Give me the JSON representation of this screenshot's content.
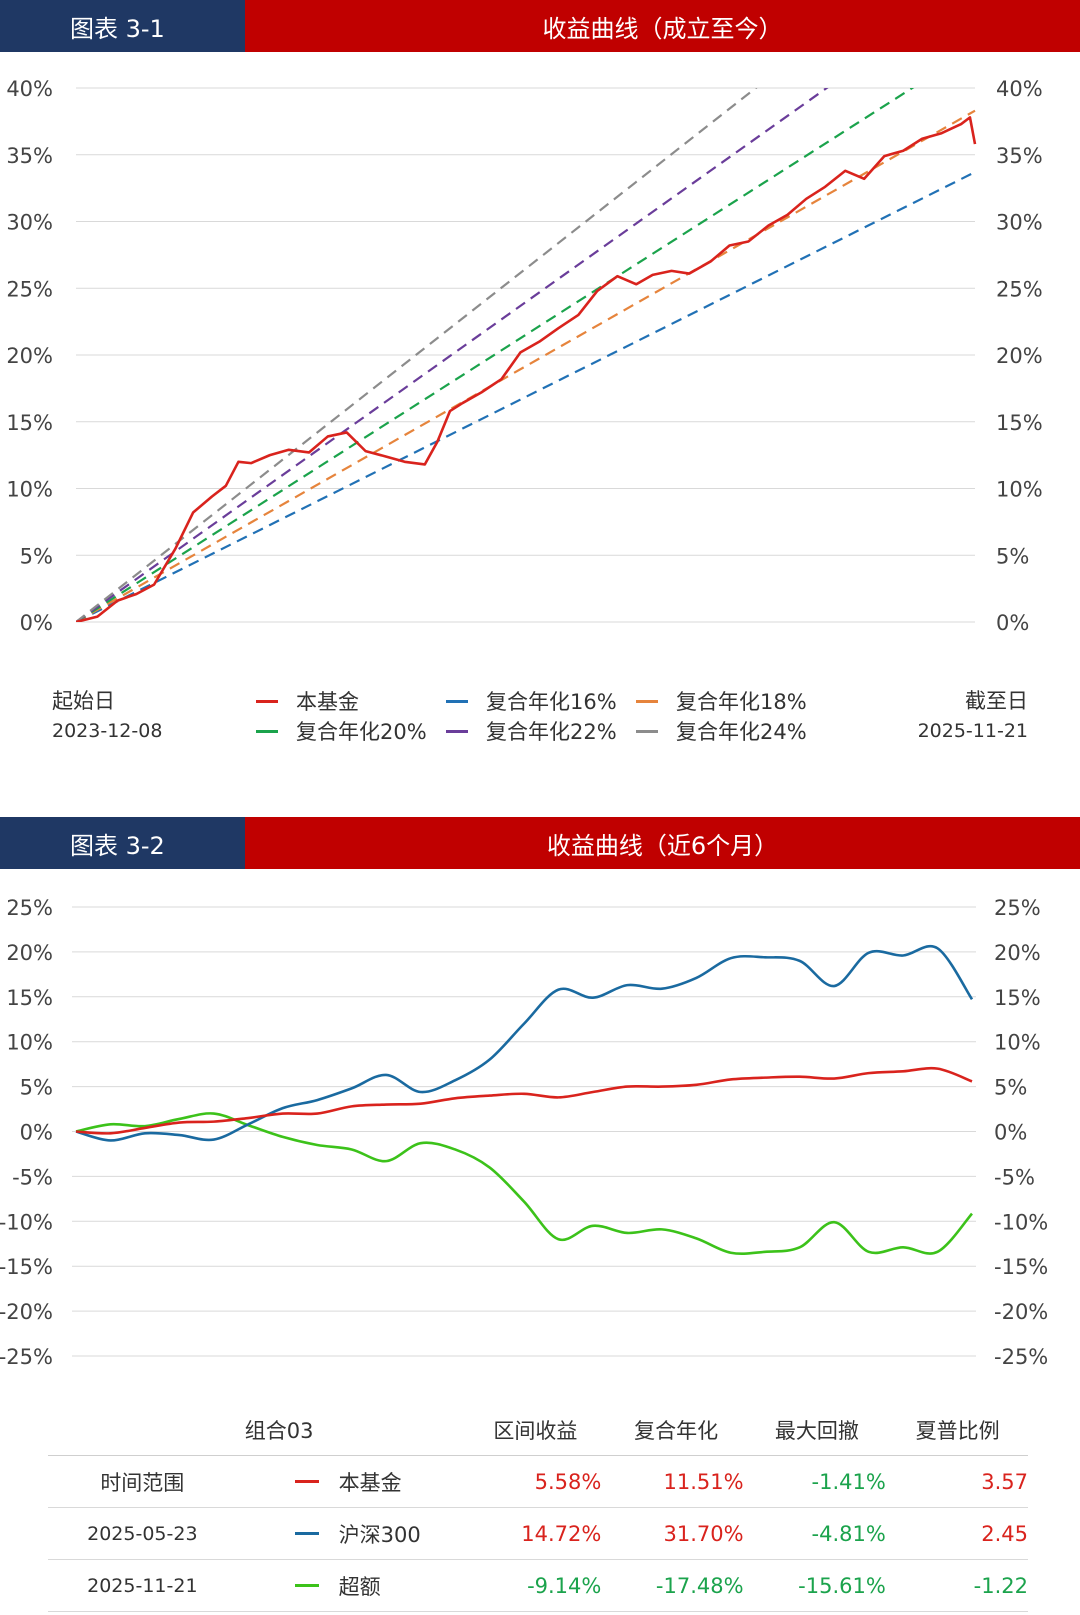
{
  "colors": {
    "header_left_bg": "#1f3864",
    "header_right_bg": "#c00000",
    "fund": "#d9231d",
    "cagr16": "#2171b5",
    "cagr18": "#e6843c",
    "cagr20": "#1ba34c",
    "cagr22": "#6a3d9a",
    "cagr24": "#8c8c8c",
    "hs300": "#1a6aa0",
    "excess": "#3cc21a",
    "positive_text": "#d9231d",
    "negative_text": "#1ba34c"
  },
  "figure1": {
    "tag": "图表 3-1",
    "title": "收益曲线（成立至今）",
    "start_label": "起始日",
    "start_date": "2023-12-08",
    "end_label": "截至日",
    "end_date": "2025-11-21"
  },
  "figure2": {
    "tag": "图表 3-2",
    "title": "收益曲线（近6个月）"
  },
  "chart_data": [
    {
      "type": "line",
      "title": "收益曲线（成立至今）",
      "x_range": [
        "2023-12-08",
        "2025-11-21"
      ],
      "ylim": [
        0,
        40
      ],
      "y_ticks": [
        "0%",
        "5%",
        "10%",
        "15%",
        "20%",
        "25%",
        "30%",
        "35%",
        "40%"
      ],
      "grid": true,
      "legend": "bottom",
      "series": [
        {
          "name": "本基金",
          "color_key": "fund",
          "style": "solid",
          "x": [
            "2023-12-08",
            "2023-12-25",
            "2024-01-10",
            "2024-01-25",
            "2024-02-08",
            "2024-02-25",
            "2024-03-10",
            "2024-03-25",
            "2024-04-05",
            "2024-04-15",
            "2024-04-25",
            "2024-05-10",
            "2024-05-25",
            "2024-06-10",
            "2024-06-25",
            "2024-07-10",
            "2024-07-25",
            "2024-08-10",
            "2024-08-25",
            "2024-09-10",
            "2024-09-20",
            "2024-09-30",
            "2024-10-10",
            "2024-10-25",
            "2024-11-10",
            "2024-11-25",
            "2024-12-10",
            "2024-12-25",
            "2025-01-10",
            "2025-01-25",
            "2025-02-10",
            "2025-02-25",
            "2025-03-10",
            "2025-03-25",
            "2025-04-08",
            "2025-04-25",
            "2025-05-10",
            "2025-05-25",
            "2025-06-10",
            "2025-06-25",
            "2025-07-10",
            "2025-07-25",
            "2025-08-10",
            "2025-08-25",
            "2025-09-10",
            "2025-09-25",
            "2025-10-10",
            "2025-10-25",
            "2025-11-10",
            "2025-11-17",
            "2025-11-21"
          ],
          "y": [
            0,
            0.4,
            1.6,
            2.1,
            2.8,
            5.5,
            8.2,
            9.4,
            10.2,
            12.0,
            11.9,
            12.5,
            12.9,
            12.7,
            13.9,
            14.2,
            12.8,
            12.4,
            12.0,
            11.8,
            13.5,
            15.8,
            16.4,
            17.2,
            18.2,
            20.2,
            21.0,
            22.0,
            23.0,
            24.8,
            25.9,
            25.3,
            26.0,
            26.3,
            26.1,
            27.0,
            28.2,
            28.5,
            29.7,
            30.5,
            31.7,
            32.6,
            33.8,
            33.2,
            34.9,
            35.3,
            36.2,
            36.6,
            37.3,
            37.8,
            35.8
          ]
        },
        {
          "name": "复合年化16%",
          "color_key": "cagr16",
          "style": "dashed",
          "x": [
            "2023-12-08",
            "2025-11-21"
          ],
          "y": [
            0,
            33.7
          ]
        },
        {
          "name": "复合年化18%",
          "color_key": "cagr18",
          "style": "dashed",
          "x": [
            "2023-12-08",
            "2025-11-21"
          ],
          "y": [
            0,
            38.3
          ]
        },
        {
          "name": "复合年化20%",
          "color_key": "cagr20",
          "style": "dashed",
          "x": [
            "2023-12-08",
            "2025-11-21"
          ],
          "y": [
            0,
            43.0
          ]
        },
        {
          "name": "复合年化22%",
          "color_key": "cagr22",
          "style": "dashed",
          "x": [
            "2023-12-08",
            "2025-11-21"
          ],
          "y": [
            0,
            47.9
          ]
        },
        {
          "name": "复合年化24%",
          "color_key": "cagr24",
          "style": "dashed",
          "x": [
            "2023-12-08",
            "2025-11-21"
          ],
          "y": [
            0,
            52.9
          ]
        }
      ]
    },
    {
      "type": "line",
      "title": "收益曲线（近6个月）",
      "x_range": [
        "2025-05-23",
        "2025-11-21"
      ],
      "ylim": [
        -25,
        25
      ],
      "y_ticks": [
        "-25%",
        "-20%",
        "-15%",
        "-10%",
        "-5%",
        "0%",
        "5%",
        "10%",
        "15%",
        "20%",
        "25%"
      ],
      "grid": true,
      "legend": "table",
      "x": [
        "2025-05-23",
        "2025-05-30",
        "2025-06-06",
        "2025-06-13",
        "2025-06-20",
        "2025-06-27",
        "2025-07-04",
        "2025-07-11",
        "2025-07-18",
        "2025-07-25",
        "2025-08-01",
        "2025-08-08",
        "2025-08-15",
        "2025-08-22",
        "2025-08-29",
        "2025-09-05",
        "2025-09-12",
        "2025-09-19",
        "2025-09-26",
        "2025-10-03",
        "2025-10-10",
        "2025-10-17",
        "2025-10-24",
        "2025-10-31",
        "2025-11-07",
        "2025-11-14",
        "2025-11-21"
      ],
      "series": [
        {
          "name": "本基金",
          "color_key": "fund",
          "y": [
            0,
            -0.2,
            0.4,
            1.0,
            1.1,
            1.5,
            2.0,
            2.0,
            2.8,
            3.0,
            3.1,
            3.7,
            4.0,
            4.2,
            3.8,
            4.4,
            5.0,
            5.0,
            5.2,
            5.8,
            6.0,
            6.1,
            5.9,
            6.5,
            6.7,
            7.0,
            5.58
          ]
        },
        {
          "name": "沪深300",
          "color_key": "hs300",
          "y": [
            0,
            -1.0,
            -0.2,
            -0.4,
            -0.9,
            0.8,
            2.6,
            3.5,
            4.8,
            6.3,
            4.4,
            5.7,
            8.0,
            12.0,
            15.8,
            14.9,
            16.3,
            15.9,
            17.1,
            19.3,
            19.4,
            19.0,
            16.2,
            19.9,
            19.6,
            20.4,
            14.72
          ]
        },
        {
          "name": "超额",
          "color_key": "excess",
          "y": [
            0,
            0.8,
            0.6,
            1.4,
            2.0,
            0.7,
            -0.6,
            -1.5,
            -2.0,
            -3.3,
            -1.3,
            -2.0,
            -4.0,
            -7.8,
            -12.0,
            -10.5,
            -11.3,
            -10.9,
            -11.9,
            -13.5,
            -13.4,
            -12.9,
            -10.1,
            -13.4,
            -12.9,
            -13.4,
            -9.14
          ]
        }
      ]
    }
  ],
  "legend1": [
    {
      "label": "本基金",
      "color_key": "fund"
    },
    {
      "label": "复合年化16%",
      "color_key": "cagr16"
    },
    {
      "label": "复合年化18%",
      "color_key": "cagr18"
    },
    {
      "label": "复合年化20%",
      "color_key": "cagr20"
    },
    {
      "label": "复合年化22%",
      "color_key": "cagr22"
    },
    {
      "label": "复合年化24%",
      "color_key": "cagr24"
    }
  ],
  "table": {
    "headers": [
      "组合03",
      "区间收益",
      "复合年化",
      "最大回撤",
      "夏普比例"
    ],
    "rows": [
      {
        "left": "时间范围",
        "name": "本基金",
        "color_key": "fund",
        "values": [
          "5.58%",
          "11.51%",
          "-1.41%",
          "3.57"
        ],
        "value_colors": [
          "positive_text",
          "positive_text",
          "negative_text",
          "positive_text"
        ]
      },
      {
        "left": "2025-05-23",
        "name": "沪深300",
        "color_key": "hs300",
        "values": [
          "14.72%",
          "31.70%",
          "-4.81%",
          "2.45"
        ],
        "value_colors": [
          "positive_text",
          "positive_text",
          "negative_text",
          "positive_text"
        ]
      },
      {
        "left": "2025-11-21",
        "name": "超额",
        "color_key": "excess",
        "values": [
          "-9.14%",
          "-17.48%",
          "-15.61%",
          "-1.22"
        ],
        "value_colors": [
          "negative_text",
          "negative_text",
          "negative_text",
          "negative_text"
        ]
      }
    ]
  }
}
